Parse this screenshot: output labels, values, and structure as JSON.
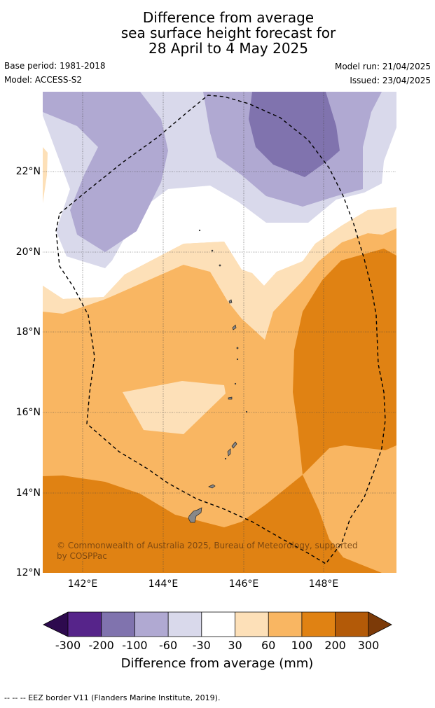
{
  "title": {
    "line1": "Difference from average",
    "line2": "sea surface height forecast for",
    "line3": "28 April to 4 May 2025"
  },
  "meta": {
    "base_period": "Base period: 1981-2018",
    "model": "Model: ACCESS-S2",
    "model_run": "Model run: 21/04/2025",
    "issued": "Issued: 23/04/2025"
  },
  "map": {
    "lat_labels": [
      "22°N",
      "20°N",
      "18°N",
      "16°N",
      "14°N",
      "12°N"
    ],
    "lon_labels": [
      "142°E",
      "144°E",
      "146°E",
      "148°E"
    ],
    "credit": "© Commonwealth of Australia 2025, Bureau of Meteorology, supported by COSPPac",
    "colors": {
      "m300": "#2d0a4e",
      "m200": "#56248a",
      "m100": "#8073ae",
      "m60": "#b0a9d2",
      "m30": "#d9d9eb",
      "zero": "#ffffff",
      "p30": "#fde0b8",
      "p60": "#f9b662",
      "p100": "#e08213",
      "p200": "#b35a08",
      "p300": "#7c3a08"
    }
  },
  "colorbar": {
    "ticks": [
      "-300",
      "-200",
      "-100",
      "-60",
      "-30",
      "30",
      "60",
      "100",
      "200",
      "300"
    ],
    "label": "Difference from average (mm)"
  },
  "footer": "-- -- -- EEZ border V11 (Flanders Marine Institute, 2019)."
}
